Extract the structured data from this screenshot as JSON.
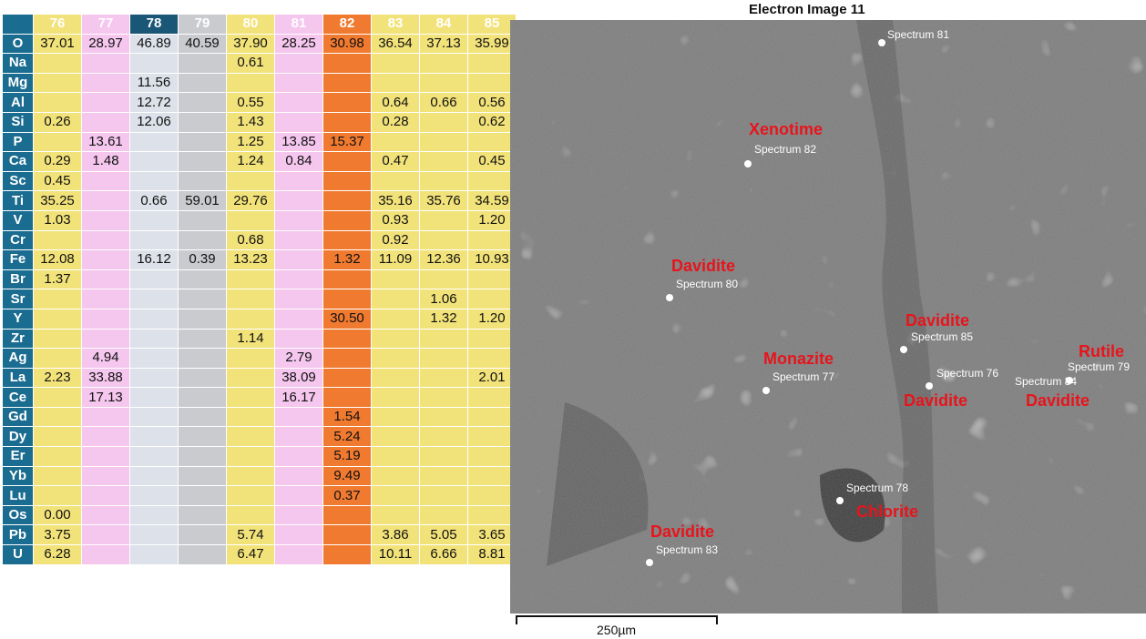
{
  "table": {
    "columns": [
      "76",
      "77",
      "78",
      "79",
      "80",
      "81",
      "82",
      "83",
      "84",
      "85"
    ],
    "column_colors": [
      "yellow",
      "pink",
      "navy",
      "gray",
      "yellow",
      "pink",
      "orange",
      "yellow",
      "yellow",
      "yellow"
    ],
    "rows": [
      {
        "el": "O",
        "v": [
          "37.01",
          "28.97",
          "46.89",
          "40.59",
          "37.90",
          "28.25",
          "30.98",
          "36.54",
          "37.13",
          "35.99"
        ]
      },
      {
        "el": "Na",
        "v": [
          "",
          "",
          "",
          "",
          "0.61",
          "",
          "",
          "",
          "",
          ""
        ]
      },
      {
        "el": "Mg",
        "v": [
          "",
          "",
          "11.56",
          "",
          "",
          "",
          "",
          "",
          "",
          ""
        ]
      },
      {
        "el": "Al",
        "v": [
          "",
          "",
          "12.72",
          "",
          "0.55",
          "",
          "",
          "0.64",
          "0.66",
          "0.56"
        ]
      },
      {
        "el": "Si",
        "v": [
          "0.26",
          "",
          "12.06",
          "",
          "1.43",
          "",
          "",
          "0.28",
          "",
          "0.62"
        ]
      },
      {
        "el": "P",
        "v": [
          "",
          "13.61",
          "",
          "",
          "1.25",
          "13.85",
          "15.37",
          "",
          "",
          ""
        ]
      },
      {
        "el": "Ca",
        "v": [
          "0.29",
          "1.48",
          "",
          "",
          "1.24",
          "0.84",
          "",
          "0.47",
          "",
          "0.45"
        ]
      },
      {
        "el": "Sc",
        "v": [
          "0.45",
          "",
          "",
          "",
          "",
          "",
          "",
          "",
          "",
          ""
        ]
      },
      {
        "el": "Ti",
        "v": [
          "35.25",
          "",
          "0.66",
          "59.01",
          "29.76",
          "",
          "",
          "35.16",
          "35.76",
          "34.59"
        ]
      },
      {
        "el": "V",
        "v": [
          "1.03",
          "",
          "",
          "",
          "",
          "",
          "",
          "0.93",
          "",
          "1.20"
        ]
      },
      {
        "el": "Cr",
        "v": [
          "",
          "",
          "",
          "",
          "0.68",
          "",
          "",
          "0.92",
          "",
          ""
        ]
      },
      {
        "el": "Fe",
        "v": [
          "12.08",
          "",
          "16.12",
          "0.39",
          "13.23",
          "",
          "1.32",
          "11.09",
          "12.36",
          "10.93"
        ]
      },
      {
        "el": "Br",
        "v": [
          "1.37",
          "",
          "",
          "",
          "",
          "",
          "",
          "",
          "",
          ""
        ]
      },
      {
        "el": "Sr",
        "v": [
          "",
          "",
          "",
          "",
          "",
          "",
          "",
          "",
          "1.06",
          ""
        ]
      },
      {
        "el": "Y",
        "v": [
          "",
          "",
          "",
          "",
          "",
          "",
          "30.50",
          "",
          "1.32",
          "1.20"
        ]
      },
      {
        "el": "Zr",
        "v": [
          "",
          "",
          "",
          "",
          "1.14",
          "",
          "",
          "",
          "",
          ""
        ]
      },
      {
        "el": "Ag",
        "v": [
          "",
          "4.94",
          "",
          "",
          "",
          "2.79",
          "",
          "",
          "",
          ""
        ]
      },
      {
        "el": "La",
        "v": [
          "2.23",
          "33.88",
          "",
          "",
          "",
          "38.09",
          "",
          "",
          "",
          "2.01"
        ]
      },
      {
        "el": "Ce",
        "v": [
          "",
          "17.13",
          "",
          "",
          "",
          "16.17",
          "",
          "",
          "",
          ""
        ]
      },
      {
        "el": "Gd",
        "v": [
          "",
          "",
          "",
          "",
          "",
          "",
          "1.54",
          "",
          "",
          ""
        ]
      },
      {
        "el": "Dy",
        "v": [
          "",
          "",
          "",
          "",
          "",
          "",
          "5.24",
          "",
          "",
          ""
        ]
      },
      {
        "el": "Er",
        "v": [
          "",
          "",
          "",
          "",
          "",
          "",
          "5.19",
          "",
          "",
          ""
        ]
      },
      {
        "el": "Yb",
        "v": [
          "",
          "",
          "",
          "",
          "",
          "",
          "9.49",
          "",
          "",
          ""
        ]
      },
      {
        "el": "Lu",
        "v": [
          "",
          "",
          "",
          "",
          "",
          "",
          "0.37",
          "",
          "",
          ""
        ]
      },
      {
        "el": "Os",
        "v": [
          "0.00",
          "",
          "",
          "",
          "",
          "",
          "",
          "",
          "",
          ""
        ]
      },
      {
        "el": "Pb",
        "v": [
          "3.75",
          "",
          "",
          "",
          "5.74",
          "",
          "",
          "3.86",
          "5.05",
          "3.65"
        ]
      },
      {
        "el": "U",
        "v": [
          "6.28",
          "",
          "",
          "",
          "6.47",
          "",
          "",
          "10.11",
          "6.66",
          "8.81"
        ]
      }
    ]
  },
  "image": {
    "title": "Electron Image 11",
    "scale_label": "250µm",
    "spectra": [
      {
        "label": "Spectrum 81"
      },
      {
        "label": "Spectrum 82"
      },
      {
        "label": "Spectrum 80"
      },
      {
        "label": "Spectrum 85"
      },
      {
        "label": "Spectrum 77"
      },
      {
        "label": "Spectrum 76"
      },
      {
        "label": "Spectrum 84"
      },
      {
        "label": "Spectrum 79"
      },
      {
        "label": "Spectrum 78"
      },
      {
        "label": "Spectrum 83"
      }
    ],
    "minerals": [
      {
        "name": "Xenotime"
      },
      {
        "name": "Davidite"
      },
      {
        "name": "Davidite"
      },
      {
        "name": "Monazite"
      },
      {
        "name": "Rutile"
      },
      {
        "name": "Davidite"
      },
      {
        "name": "Davidite"
      },
      {
        "name": "Chlorite"
      },
      {
        "name": "Davidite"
      }
    ],
    "label_color": "#e8141c"
  }
}
